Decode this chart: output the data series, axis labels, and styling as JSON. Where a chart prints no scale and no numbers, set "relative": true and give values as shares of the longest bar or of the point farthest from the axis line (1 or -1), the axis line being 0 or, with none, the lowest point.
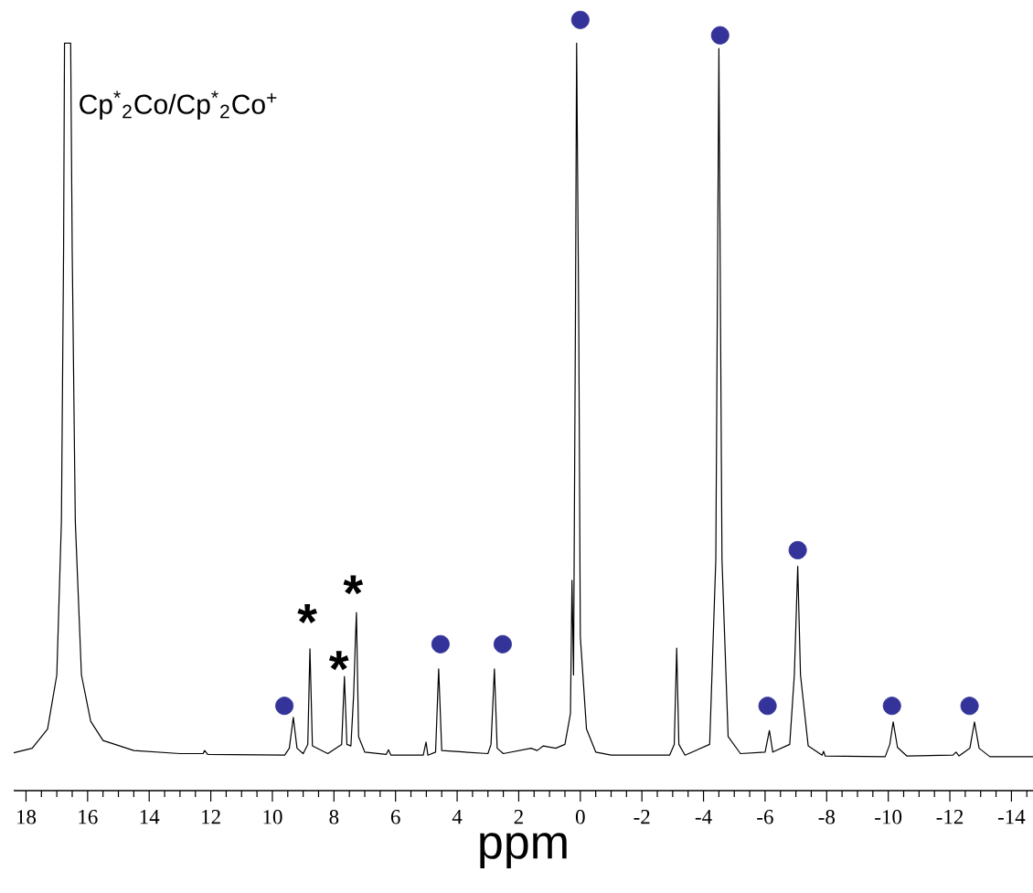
{
  "chart_data": {
    "type": "line",
    "relative": true,
    "xlabel": "ppm",
    "xlim": [
      18.4,
      -14.7
    ],
    "xticks": [
      18,
      {
        "value": 17.5,
        "label": null
      },
      {
        "value": 17,
        "label": null
      },
      {
        "value": 16.5,
        "label": null
      },
      16,
      {
        "value": 15.5,
        "label": null
      },
      {
        "value": 15,
        "label": null
      },
      {
        "value": 14.5,
        "label": null
      },
      14,
      {
        "value": 13.5,
        "label": null
      },
      {
        "value": 13,
        "label": null
      },
      {
        "value": 12.5,
        "label": null
      },
      12,
      {
        "value": 11.5,
        "label": null
      },
      {
        "value": 11,
        "label": null
      },
      {
        "value": 10.5,
        "label": null
      },
      10,
      {
        "value": 9.5,
        "label": null
      },
      {
        "value": 9,
        "label": null
      },
      {
        "value": 8.5,
        "label": null
      },
      8,
      {
        "value": 7.5,
        "label": null
      },
      {
        "value": 7,
        "label": null
      },
      {
        "value": 6.5,
        "label": null
      },
      6,
      {
        "value": 5.5,
        "label": null
      },
      {
        "value": 5,
        "label": null
      },
      {
        "value": 4.5,
        "label": null
      },
      4,
      {
        "value": 3.5,
        "label": null
      },
      {
        "value": 3,
        "label": null
      },
      {
        "value": 2.5,
        "label": null
      },
      2,
      {
        "value": 1.5,
        "label": null
      },
      {
        "value": 1,
        "label": null
      },
      {
        "value": 0.5,
        "label": null
      },
      0,
      {
        "value": -0.5,
        "label": null
      },
      {
        "value": -1,
        "label": null
      },
      {
        "value": -1.5,
        "label": null
      },
      -2,
      {
        "value": -2.5,
        "label": null
      },
      {
        "value": -3,
        "label": null
      },
      {
        "value": -3.5,
        "label": null
      },
      -4,
      {
        "value": -4.5,
        "label": null
      },
      {
        "value": -5,
        "label": null
      },
      {
        "value": -5.5,
        "label": null
      },
      -6,
      {
        "value": -6.5,
        "label": null
      },
      {
        "value": -7,
        "label": null
      },
      {
        "value": -7.5,
        "label": null
      },
      -8,
      {
        "value": -8.5,
        "label": null
      },
      {
        "value": -9,
        "label": null
      },
      {
        "value": -9.5,
        "label": null
      },
      -10,
      {
        "value": -10.5,
        "label": null
      },
      {
        "value": -11,
        "label": null
      },
      {
        "value": -11.5,
        "label": null
      },
      -12,
      {
        "value": -12.5,
        "label": null
      },
      {
        "value": -13,
        "label": null
      },
      {
        "value": -13.5,
        "label": null
      },
      -14,
      {
        "value": -14.5,
        "label": null
      }
    ],
    "marker": "none",
    "line_style": "solid",
    "grid": false,
    "series": [
      {
        "color": "#000000",
        "x": [
          18.4,
          17.8,
          17.3,
          17.0,
          16.85,
          16.78,
          16.75,
          16.55,
          16.5,
          16.4,
          16.2,
          15.9,
          15.5,
          14.5,
          13.0,
          12.25,
          12.2,
          12.1,
          9.6,
          9.45,
          9.32,
          9.2,
          9.0,
          8.85,
          8.78,
          8.7,
          8.2,
          7.75,
          7.66,
          7.58,
          7.45,
          7.36,
          7.3,
          7.27,
          7.2,
          7.0,
          6.3,
          6.23,
          6.15,
          5.1,
          5.01,
          4.95,
          4.7,
          4.6,
          4.5,
          3.0,
          2.9,
          2.79,
          2.7,
          2.5,
          1.6,
          1.4,
          1.2,
          0.8,
          0.5,
          0.32,
          0.27,
          0.22,
          0.16,
          0.12,
          0.05,
          0.0,
          -0.2,
          -0.5,
          -1.0,
          -2.9,
          -3.05,
          -3.13,
          -3.2,
          -3.4,
          -4.2,
          -4.4,
          -4.5,
          -4.6,
          -4.8,
          -5.2,
          -6.0,
          -6.14,
          -6.25,
          -6.8,
          -6.95,
          -7.06,
          -7.15,
          -7.4,
          -7.85,
          -7.9,
          -7.95,
          -9.9,
          -10.05,
          -10.16,
          -10.3,
          -10.6,
          -12.1,
          -12.2,
          -12.3,
          -12.65,
          -12.8,
          -12.95,
          -13.3,
          -14.7
        ],
        "values": [
          0.049,
          0.055,
          0.08,
          0.15,
          0.35,
          0.7,
          0.97,
          0.97,
          0.7,
          0.35,
          0.15,
          0.09,
          0.065,
          0.052,
          0.048,
          0.048,
          0.052,
          0.047,
          0.046,
          0.055,
          0.095,
          0.055,
          0.048,
          0.06,
          0.184,
          0.058,
          0.048,
          0.06,
          0.148,
          0.06,
          0.058,
          0.125,
          0.2,
          0.231,
          0.07,
          0.05,
          0.047,
          0.053,
          0.046,
          0.046,
          0.063,
          0.046,
          0.05,
          0.158,
          0.052,
          0.048,
          0.06,
          0.158,
          0.055,
          0.048,
          0.055,
          0.052,
          0.058,
          0.055,
          0.06,
          0.1,
          0.273,
          0.15,
          0.6,
          0.97,
          0.6,
          0.2,
          0.08,
          0.05,
          0.046,
          0.046,
          0.06,
          0.185,
          0.06,
          0.046,
          0.06,
          0.3,
          0.963,
          0.3,
          0.07,
          0.048,
          0.05,
          0.078,
          0.05,
          0.06,
          0.15,
          0.291,
          0.15,
          0.058,
          0.046,
          0.051,
          0.045,
          0.044,
          0.06,
          0.089,
          0.056,
          0.045,
          0.046,
          0.05,
          0.045,
          0.055,
          0.089,
          0.055,
          0.044,
          0.044
        ]
      },
      {
        "type": "scatter",
        "marker": "circle",
        "color": "#333399",
        "x": [
          9.61,
          4.54,
          2.52,
          0.0,
          -4.54,
          -6.08,
          -7.06,
          -10.12,
          -12.64
        ],
        "values": [
          0.11,
          0.19,
          0.19,
          1.0,
          0.98,
          0.11,
          0.312,
          0.11,
          0.11
        ]
      }
    ],
    "annotations": [
      "Cp$^{*}$$_{2}$Co/Cp$^{*}$$_{2}$Co$^{+}$",
      "*",
      "*",
      "*"
    ]
  }
}
